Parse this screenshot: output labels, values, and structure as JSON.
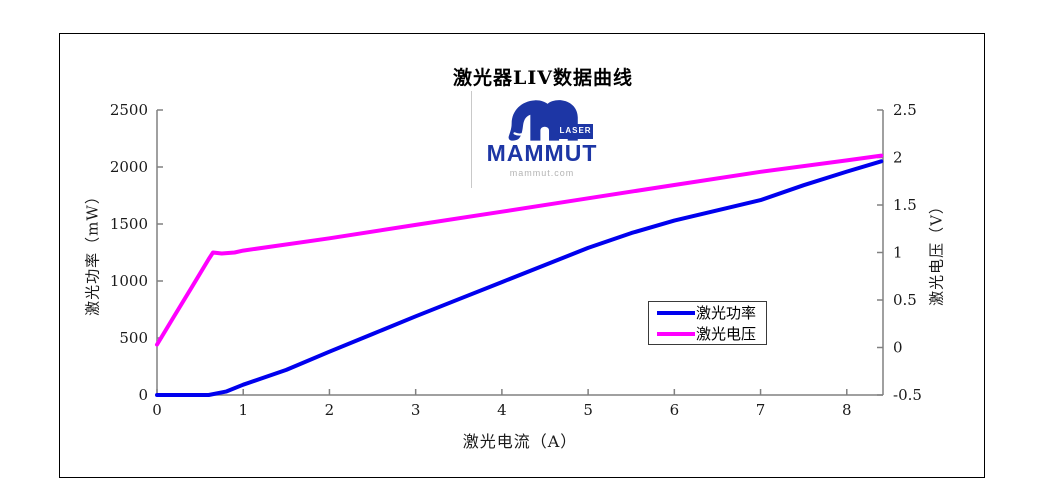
{
  "window": {
    "background": "#ffffff",
    "frame_border_color": "#000000"
  },
  "chart": {
    "title": "激光器LIV数据曲线",
    "axis_color": "#808080",
    "x_axis": {
      "label": "激光电流（A）",
      "ticks": [
        "0",
        "1",
        "2",
        "3",
        "4",
        "5",
        "6",
        "7",
        "8"
      ]
    },
    "y_left": {
      "label": "激光功率（mW）",
      "ticks": [
        "0",
        "500",
        "1000",
        "1500",
        "2000",
        "2500"
      ]
    },
    "y_right": {
      "label": "激光电压（V）",
      "ticks": [
        "-0.5",
        "0",
        "0.5",
        "1",
        "1.5",
        "2",
        "2.5"
      ]
    },
    "legend": {
      "items": [
        {
          "label": "激光功率",
          "color": "#0000ee"
        },
        {
          "label": "激光电压",
          "color": "#ff00ff"
        }
      ]
    }
  },
  "logo": {
    "brand": "MAMMUT",
    "badge": "LASER",
    "url": "mammut.com",
    "color": "#1d36a5",
    "url_color": "#b4b4b4"
  },
  "chart_data": {
    "type": "line",
    "title": "激光器LIV数据曲线",
    "xlabel": "激光电流（A）",
    "ylabel_left": "激光功率（mW）",
    "ylabel_right": "激光电压（V）",
    "xlim": [
      0,
      8.42
    ],
    "ylim_left": [
      0,
      2500
    ],
    "ylim_right": [
      -0.5,
      2.5
    ],
    "grid": false,
    "legend_position": "inside lower-right",
    "series": [
      {
        "name": "激光功率",
        "key": "power",
        "axis": "left",
        "color": "#0000ee",
        "x": [
          0,
          0.3,
          0.6,
          0.8,
          1.0,
          1.5,
          2.0,
          2.5,
          3.0,
          3.5,
          4.0,
          4.5,
          5.0,
          5.5,
          6.0,
          6.5,
          7.0,
          7.5,
          8.0,
          8.4
        ],
        "y": [
          0,
          0,
          0,
          30,
          90,
          220,
          380,
          535,
          690,
          840,
          990,
          1140,
          1290,
          1420,
          1530,
          1620,
          1710,
          1840,
          1960,
          2050
        ]
      },
      {
        "name": "激光电压",
        "key": "voltage",
        "axis": "right",
        "color": "#ff00ff",
        "x": [
          0,
          0.2,
          0.4,
          0.6,
          0.65,
          0.75,
          0.9,
          1.0,
          2.0,
          3.0,
          4.0,
          5.0,
          6.0,
          7.0,
          8.0,
          8.4
        ],
        "y": [
          0.03,
          0.33,
          0.63,
          0.93,
          1.0,
          0.99,
          1.0,
          1.02,
          1.15,
          1.29,
          1.43,
          1.57,
          1.71,
          1.85,
          1.97,
          2.02
        ]
      }
    ]
  }
}
